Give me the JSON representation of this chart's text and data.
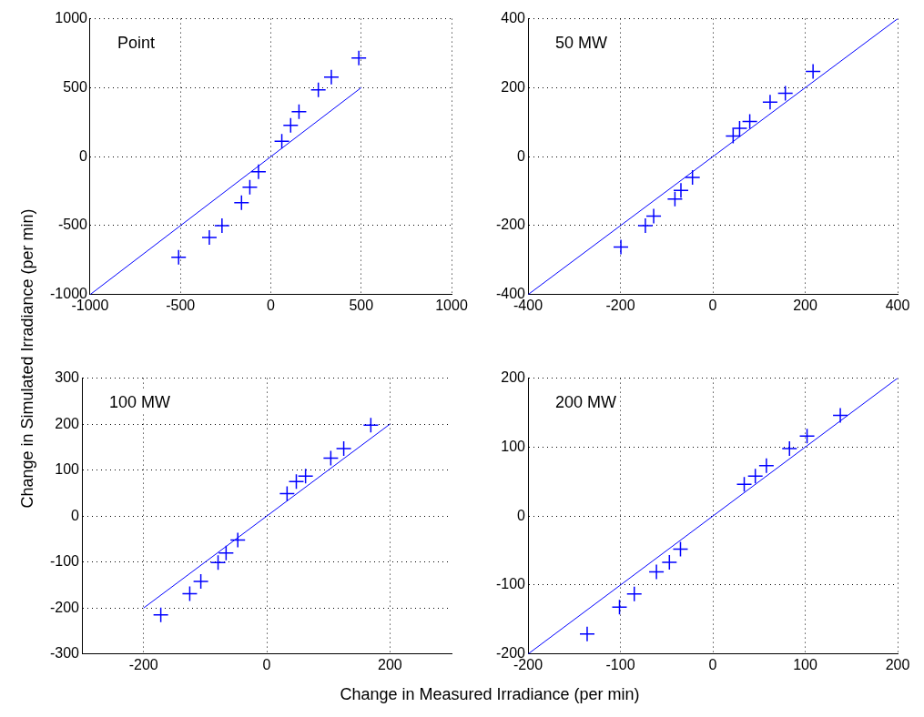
{
  "chart_data": [
    {
      "type": "scatter",
      "annotations": [
        "Point"
      ],
      "ylabel": "Change in Simulated Irradiance (per min)",
      "xlim": [
        -1000,
        1000
      ],
      "ylim": [
        -1000,
        1000
      ],
      "xticks": [
        -1000,
        -500,
        0,
        500,
        1000
      ],
      "yticks": [
        -1000,
        -500,
        0,
        500,
        1000
      ],
      "grid": true,
      "legend": false,
      "series": [
        {
          "marker": "cross",
          "color": "#0000ff",
          "x": [
            -510,
            -340,
            -270,
            -162,
            -116,
            -68,
            61,
            110,
            156,
            263,
            335,
            487
          ],
          "values": [
            -730,
            -586,
            -500,
            -333,
            -221,
            -109,
            112,
            228,
            326,
            484,
            577,
            716
          ]
        },
        {
          "type": "line",
          "color": "#0000ff",
          "x": [
            -1000,
            500
          ],
          "values": [
            -1000,
            500
          ]
        }
      ]
    },
    {
      "type": "scatter",
      "annotations": [
        "50 MW"
      ],
      "xlim": [
        -400,
        400
      ],
      "ylim": [
        -400,
        400
      ],
      "xticks": [
        -400,
        -200,
        0,
        200,
        400
      ],
      "yticks": [
        -400,
        -200,
        0,
        200,
        400
      ],
      "grid": true,
      "legend": false,
      "series": [
        {
          "marker": "cross",
          "color": "#0000ff",
          "x": [
            -199,
            -146,
            -128,
            -82,
            -69,
            -44,
            44,
            58,
            80,
            124,
            157,
            217
          ],
          "values": [
            -262,
            -200,
            -172,
            -123,
            -98,
            -60,
            60,
            82,
            102,
            158,
            184,
            247
          ]
        },
        {
          "type": "line",
          "color": "#0000ff",
          "x": [
            -400,
            400
          ],
          "values": [
            -400,
            400
          ]
        }
      ]
    },
    {
      "type": "scatter",
      "annotations": [
        "100 MW"
      ],
      "xlabel": "Change in Measured Irradiance (per min)",
      "xlim": [
        -300,
        300
      ],
      "ylim": [
        -300,
        300
      ],
      "xticks": [
        -200,
        0,
        200
      ],
      "yticks": [
        -300,
        -200,
        -100,
        0,
        100,
        200,
        300
      ],
      "grid": true,
      "legend": false,
      "series": [
        {
          "marker": "cross",
          "color": "#0000ff",
          "x": [
            -172,
            -125,
            -107,
            -79,
            -66,
            -47,
            33,
            48,
            63,
            104,
            125,
            169
          ],
          "values": [
            -215,
            -169,
            -142,
            -101,
            -80,
            -52,
            49,
            75,
            87,
            126,
            147,
            198
          ]
        },
        {
          "type": "line",
          "color": "#0000ff",
          "x": [
            -200,
            200
          ],
          "values": [
            -200,
            200
          ]
        }
      ]
    },
    {
      "type": "scatter",
      "annotations": [
        "200 MW"
      ],
      "xlim": [
        -200,
        200
      ],
      "ylim": [
        -200,
        200
      ],
      "xticks": [
        -200,
        -100,
        0,
        100,
        200
      ],
      "yticks": [
        -200,
        -100,
        0,
        100,
        200
      ],
      "grid": true,
      "legend": false,
      "series": [
        {
          "marker": "cross",
          "color": "#0000ff",
          "x": [
            -136,
            -101,
            -85,
            -61,
            -47,
            -35,
            34,
            46,
            58,
            83,
            102,
            138
          ],
          "values": [
            -171,
            -132,
            -113,
            -81,
            -67,
            -48,
            46,
            58,
            73,
            98,
            116,
            146
          ]
        },
        {
          "type": "line",
          "color": "#0000ff",
          "x": [
            -200,
            200
          ],
          "values": [
            -200,
            200
          ]
        }
      ]
    }
  ]
}
